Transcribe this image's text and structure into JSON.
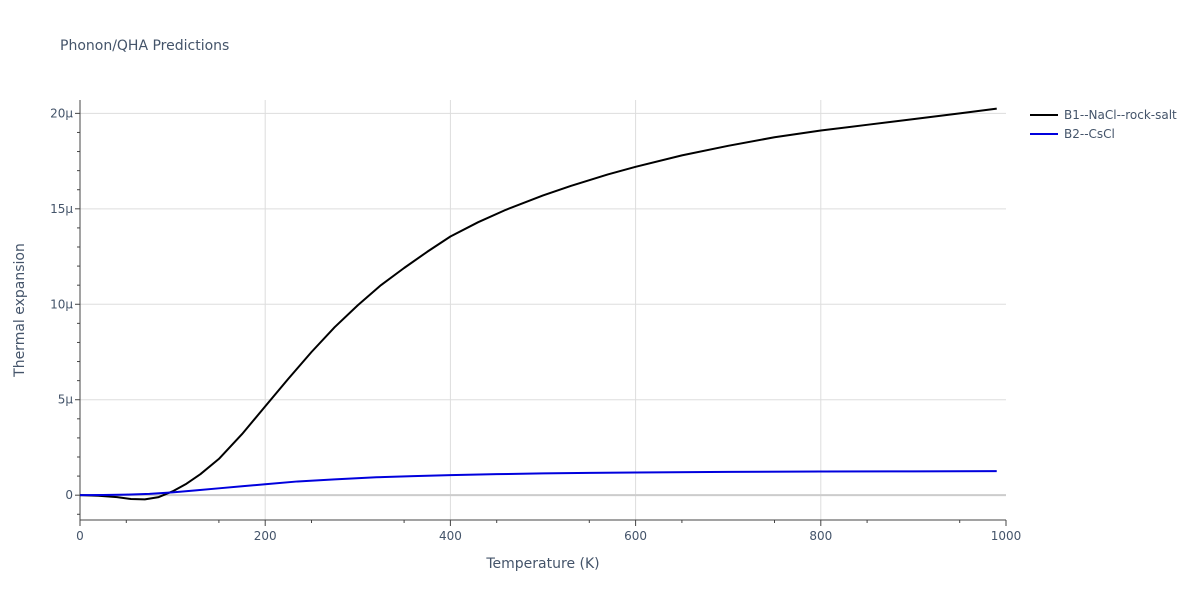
{
  "chart_data": {
    "type": "line",
    "title": "Phonon/QHA Predictions",
    "xlabel": "Temperature (K)",
    "ylabel": "Thermal expansion",
    "xlim": [
      0,
      1000
    ],
    "ylim": [
      -1.3,
      20.7
    ],
    "x_ticks": [
      0,
      200,
      400,
      600,
      800,
      1000
    ],
    "x_tick_labels": [
      "0",
      "200",
      "400",
      "600",
      "800",
      "1000"
    ],
    "y_ticks": [
      0,
      5,
      10,
      15,
      20
    ],
    "y_tick_labels": [
      "0",
      "5μ",
      "10μ",
      "15μ",
      "20μ"
    ],
    "grid": true,
    "legend": "top-right",
    "series": [
      {
        "name": "B1--NaCl--rock-salt",
        "color": "#000000",
        "x": [
          0,
          20,
          40,
          55,
          70,
          85,
          100,
          115,
          130,
          150,
          175,
          200,
          225,
          250,
          275,
          300,
          325,
          350,
          375,
          400,
          430,
          460,
          500,
          530,
          570,
          600,
          650,
          700,
          750,
          800,
          850,
          900,
          950,
          990
        ],
        "y": [
          0,
          -0.03,
          -0.1,
          -0.2,
          -0.22,
          -0.1,
          0.2,
          0.6,
          1.1,
          1.9,
          3.2,
          4.65,
          6.1,
          7.5,
          8.8,
          9.95,
          11.0,
          11.9,
          12.75,
          13.55,
          14.3,
          14.95,
          15.7,
          16.2,
          16.8,
          17.2,
          17.8,
          18.3,
          18.75,
          19.1,
          19.4,
          19.7,
          20.0,
          20.25
        ]
      },
      {
        "name": "B2--CsCl",
        "color": "#0000dd",
        "x": [
          0,
          25,
          50,
          75,
          100,
          125,
          150,
          175,
          200,
          235,
          275,
          320,
          360,
          400,
          450,
          500,
          550,
          600,
          700,
          800,
          900,
          990
        ],
        "y": [
          0,
          0.01,
          0.03,
          0.07,
          0.15,
          0.25,
          0.36,
          0.47,
          0.57,
          0.72,
          0.83,
          0.94,
          1.0,
          1.05,
          1.1,
          1.14,
          1.17,
          1.19,
          1.22,
          1.24,
          1.25,
          1.26
        ]
      }
    ]
  }
}
